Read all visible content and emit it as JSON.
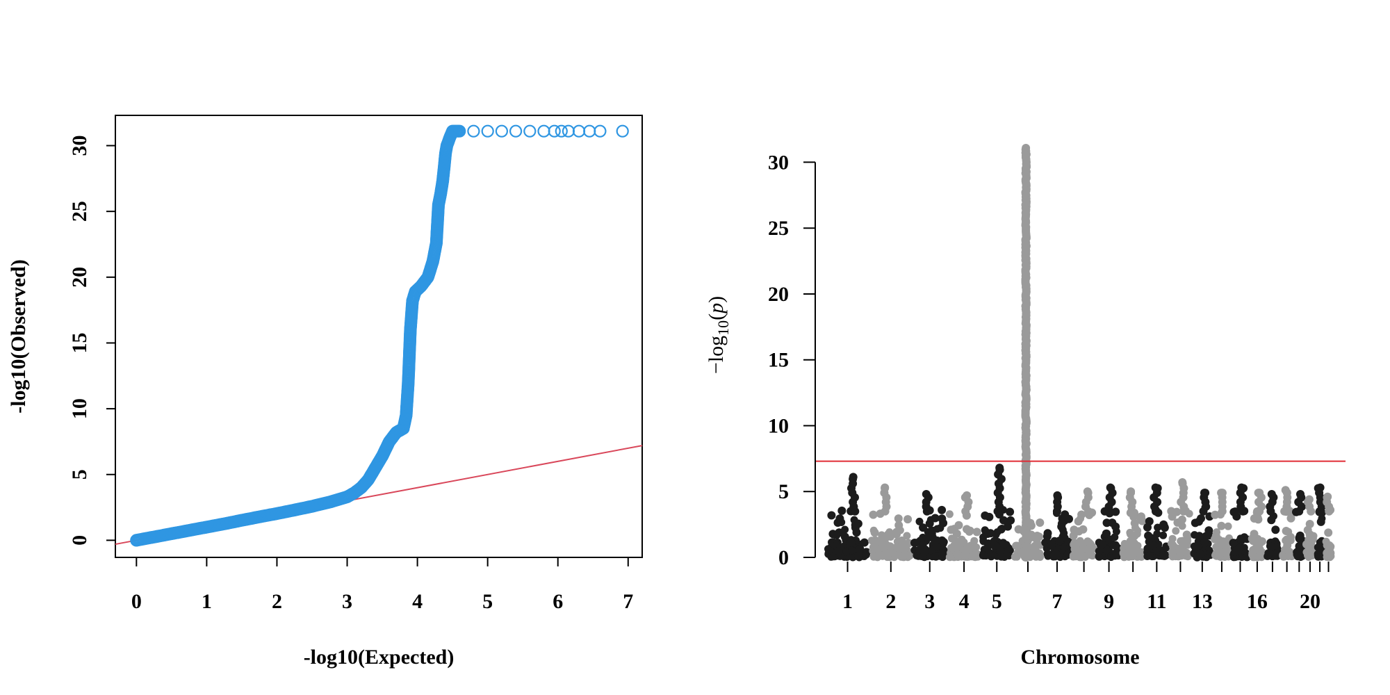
{
  "colors": {
    "qq_points": "#2f96e2",
    "reference_line": "#d9475a",
    "significance_line": "#e02b35",
    "chrom_dark": "#1c1c1c",
    "chrom_light": "#9a9a9a"
  },
  "chart_data": [
    {
      "type": "scatter",
      "xlabel": "-log10(Expected)",
      "ylabel": "-log10(Observed)",
      "xlim": [
        -0.3,
        7.2
      ],
      "ylim": [
        -1.3,
        32.3
      ],
      "x_ticks": [
        "0",
        "1",
        "2",
        "3",
        "4",
        "5",
        "6",
        "7"
      ],
      "y_ticks": [
        "0",
        "5",
        "10",
        "15",
        "20",
        "25",
        "30"
      ],
      "frame": "box",
      "grid": false,
      "point_shape": "open-circle",
      "reference_line": {
        "intercept": 0,
        "slope": 1
      },
      "series": [
        {
          "points": [
            [
              0,
              0
            ],
            [
              0.25,
              0.25
            ],
            [
              0.5,
              0.5
            ],
            [
              0.75,
              0.75
            ],
            [
              1,
              1
            ],
            [
              1.25,
              1.25
            ],
            [
              1.5,
              1.52
            ],
            [
              1.75,
              1.78
            ],
            [
              2,
              2.03
            ],
            [
              2.25,
              2.3
            ],
            [
              2.5,
              2.58
            ],
            [
              2.75,
              2.9
            ],
            [
              3,
              3.3
            ],
            [
              3.1,
              3.6
            ],
            [
              3.2,
              4.0
            ],
            [
              3.3,
              4.6
            ],
            [
              3.4,
              5.5
            ],
            [
              3.5,
              6.4
            ],
            [
              3.6,
              7.5
            ],
            [
              3.7,
              8.2
            ],
            [
              3.8,
              8.5
            ],
            [
              3.84,
              9.5
            ],
            [
              3.87,
              12.0
            ],
            [
              3.9,
              16.0
            ],
            [
              3.93,
              18.2
            ],
            [
              3.97,
              18.9
            ],
            [
              4.05,
              19.3
            ],
            [
              4.15,
              20.0
            ],
            [
              4.22,
              21.2
            ],
            [
              4.27,
              22.6
            ],
            [
              4.3,
              25.5
            ],
            [
              4.33,
              26.3
            ],
            [
              4.36,
              27.3
            ],
            [
              4.38,
              28.3
            ],
            [
              4.4,
              29.4
            ],
            [
              4.42,
              30.0
            ],
            [
              4.46,
              30.6
            ],
            [
              4.5,
              31.1
            ],
            [
              4.6,
              31.1
            ],
            [
              4.8,
              31.1
            ],
            [
              5.0,
              31.1
            ],
            [
              5.2,
              31.1
            ],
            [
              5.4,
              31.1
            ],
            [
              5.6,
              31.1
            ],
            [
              5.8,
              31.1
            ],
            [
              5.95,
              31.1
            ],
            [
              6.05,
              31.1
            ],
            [
              6.15,
              31.1
            ],
            [
              6.3,
              31.1
            ],
            [
              6.45,
              31.1
            ],
            [
              6.6,
              31.1
            ],
            [
              6.92,
              31.1
            ]
          ]
        }
      ]
    },
    {
      "type": "scatter",
      "xlabel": "Chromosome",
      "ylabel": "−log10(p)",
      "ylim": [
        0,
        31.5
      ],
      "y_ticks": [
        "0",
        "5",
        "10",
        "15",
        "20",
        "25",
        "30"
      ],
      "significance_threshold": 7.3,
      "chromosomes": [
        {
          "label": "1",
          "peak": 6.1
        },
        {
          "label": "2",
          "peak": 5.3
        },
        {
          "label": "3",
          "peak": 4.8
        },
        {
          "label": "4",
          "peak": 4.7
        },
        {
          "label": "5",
          "peak": 6.8
        },
        {
          "label": "",
          "peak": 31.1
        },
        {
          "label": "7",
          "peak": 4.7
        },
        {
          "label": "",
          "peak": 5.0
        },
        {
          "label": "9",
          "peak": 5.3
        },
        {
          "label": "",
          "peak": 5.0
        },
        {
          "label": "11",
          "peak": 5.3
        },
        {
          "label": "",
          "peak": 5.7
        },
        {
          "label": "13",
          "peak": 4.9
        },
        {
          "label": "",
          "peak": 4.9
        },
        {
          "label": "",
          "peak": 5.3
        },
        {
          "label": "16",
          "peak": 4.9
        },
        {
          "label": "",
          "peak": 4.8
        },
        {
          "label": "",
          "peak": 5.1
        },
        {
          "label": "",
          "peak": 4.8
        },
        {
          "label": "20",
          "peak": 4.4
        },
        {
          "label": "",
          "peak": 5.3
        },
        {
          "label": "",
          "peak": 4.6
        }
      ]
    }
  ]
}
